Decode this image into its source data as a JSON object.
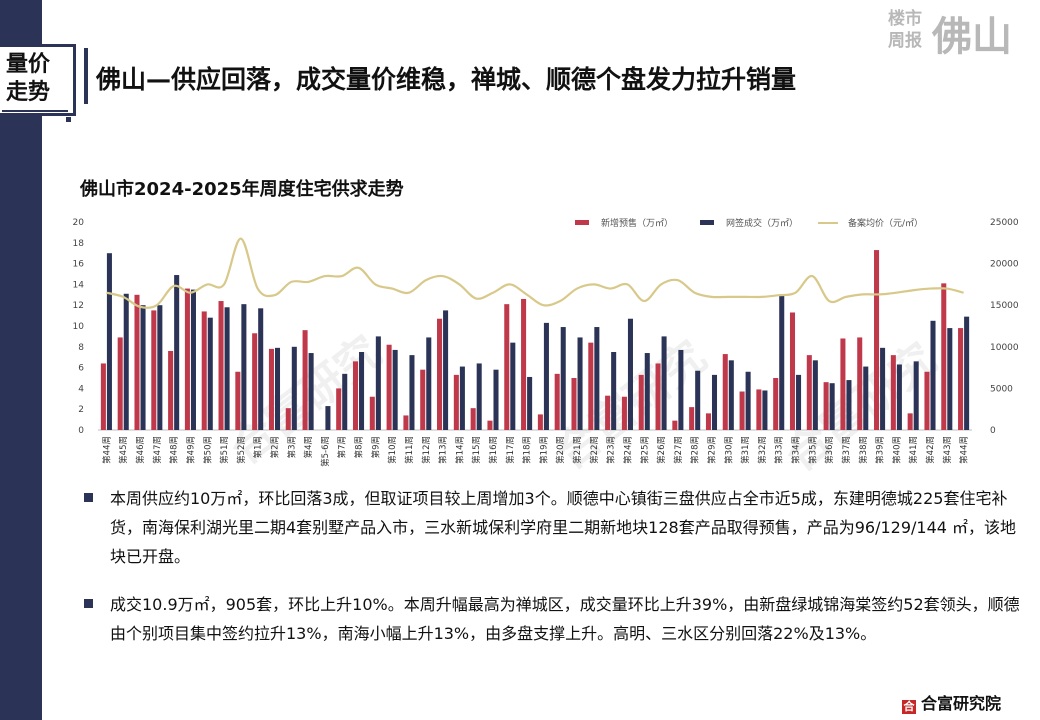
{
  "section_label": "量价\n走势",
  "headline": "佛山—供应回落，成交量价维稳，禅城、顺德个盘发力拉升销量",
  "brand": {
    "small": "楼市\n周报",
    "big": "佛山"
  },
  "chart_title": "佛山市2024-2025年周度住宅供求走势",
  "watermarks": [
    "合富研究",
    "合富研究",
    "合富研究"
  ],
  "chart_data": {
    "type": "bar+line",
    "categories": [
      "第44周",
      "第45周",
      "第46周",
      "第47周",
      "第48周",
      "第49周",
      "第50周",
      "第51周",
      "第52周",
      "第1周",
      "第2周",
      "第3周",
      "第4周",
      "第5-6周",
      "第7周",
      "第8周",
      "第9周",
      "第10周",
      "第11周",
      "第12周",
      "第13周",
      "第14周",
      "第15周",
      "第16周",
      "第17周",
      "第18周",
      "第19周",
      "第20周",
      "第21周",
      "第22周",
      "第23周",
      "第24周",
      "第25周",
      "第26周",
      "第27周",
      "第28周",
      "第29周",
      "第30周",
      "第31周",
      "第32周",
      "第33周",
      "第34周",
      "第35周",
      "第36周",
      "第37周",
      "第38周",
      "第39周",
      "第40周",
      "第41周",
      "第42周",
      "第43周",
      "第44周"
    ],
    "series": [
      {
        "name": "新增预售（万㎡）",
        "type": "bar",
        "axis": "left",
        "color": "#c0394b",
        "values": [
          6.4,
          8.9,
          13.0,
          11.5,
          7.6,
          13.6,
          11.4,
          12.4,
          5.6,
          9.3,
          7.8,
          2.1,
          9.6,
          0,
          4.0,
          6.6,
          3.2,
          8.2,
          1.4,
          5.8,
          10.7,
          5.3,
          2.1,
          0.9,
          12.1,
          12.6,
          1.5,
          5.4,
          5.0,
          8.4,
          3.3,
          3.2,
          5.3,
          6.4,
          0.9,
          2.2,
          1.6,
          7.3,
          3.7,
          3.9,
          5.0,
          11.3,
          7.2,
          4.6,
          8.8,
          8.9,
          17.3,
          7.2,
          1.6,
          5.6,
          14.1,
          9.8
        ]
      },
      {
        "name": "网签成交（万㎡）",
        "type": "bar",
        "axis": "left",
        "color": "#2b3457",
        "values": [
          17.0,
          13.1,
          12.0,
          12.0,
          14.9,
          13.5,
          10.8,
          11.8,
          12.1,
          11.7,
          7.9,
          8.0,
          7.4,
          2.3,
          5.4,
          7.5,
          9.0,
          7.7,
          7.2,
          8.9,
          11.5,
          6.1,
          6.4,
          5.8,
          8.4,
          5.1,
          10.3,
          9.9,
          8.9,
          9.9,
          7.5,
          10.7,
          7.4,
          9.0,
          7.7,
          5.7,
          5.3,
          6.7,
          5.6,
          3.8,
          13.0,
          5.3,
          6.7,
          4.5,
          4.8,
          6.1,
          7.9,
          6.3,
          6.6,
          10.5,
          9.8,
          10.9
        ]
      },
      {
        "name": "备案均价（元/㎡）",
        "type": "line",
        "axis": "right",
        "color": "#d8c98a",
        "values": [
          16500,
          16000,
          14800,
          15000,
          17300,
          16500,
          17500,
          17500,
          23000,
          17000,
          16200,
          17800,
          17800,
          18500,
          18500,
          19500,
          17500,
          17000,
          16500,
          18000,
          18500,
          17500,
          15800,
          16500,
          17500,
          16300,
          15000,
          15500,
          17000,
          17500,
          17000,
          17500,
          15500,
          17500,
          18000,
          16500,
          16000,
          16000,
          16000,
          16000,
          16200,
          16500,
          18500,
          15500,
          16000,
          16300,
          16300,
          16500,
          16800,
          17000,
          17000,
          16500
        ]
      }
    ],
    "ylim_left": [
      0,
      20
    ],
    "yticks_left": [
      0,
      2,
      4,
      6,
      8,
      10,
      12,
      14,
      16,
      18,
      20
    ],
    "ylim_right": [
      0,
      25000
    ],
    "yticks_right": [
      0,
      5000,
      10000,
      15000,
      20000,
      25000
    ],
    "legend_position": "top-right"
  },
  "bullets": [
    {
      "text": "本周供应约10万㎡，环比回落3成，但取证项目较上周增加3个。顺德中心镇街三盘供应占全市近5成，东建明德城225套住宅补货，南海保利湖光里二期4套别墅产品入市，三水新城保利学府里二期新地块128套产品取得预售，产品为96/129/144 ㎡，该地块已开盘。"
    },
    {
      "text": "成交10.9万㎡，905套，环比上升10%。本周升幅最高为禅城区，成交量环比上升39%，由新盘绿城锦海棠签约52套领头，顺德由个别项目集中签约拉升13%，南海小幅上升13%，由多盘支撑上升。高明、三水区分别回落22%及13%。"
    }
  ],
  "footer": {
    "logo_icon": "合",
    "logo_text": "合富研究院"
  }
}
